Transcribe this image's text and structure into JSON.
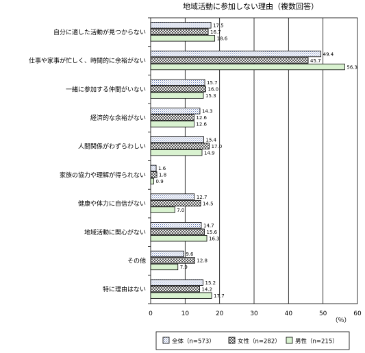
{
  "chart_data": {
    "type": "bar",
    "orientation": "horizontal",
    "title": "地域活動に参加しない理由（複数回答）",
    "unit_label": "（％）",
    "xlim": [
      0,
      60
    ],
    "xticks": [
      0,
      10,
      20,
      30,
      40,
      50,
      60
    ],
    "grid": true,
    "legend_position": "bottom",
    "categories": [
      "自分に適した活動が見つからない",
      "仕事や家事が忙しく、時間的に余裕がない",
      "一緒に参加する仲間がいない",
      "経済的な余裕がない",
      "人間関係がわずらわしい",
      "家族の協力や理解が得られない",
      "健康や体力に自信がない",
      "地域活動に関心がない",
      "その他",
      "特に理由はない"
    ],
    "series": [
      {
        "name": "全体（n=573）",
        "pattern": "dots",
        "values": [
          17.5,
          49.4,
          15.7,
          14.3,
          15.4,
          1.6,
          12.7,
          14.7,
          9.6,
          15.2
        ]
      },
      {
        "name": "女性（n=282）",
        "pattern": "hatch",
        "values": [
          16.7,
          45.7,
          16.0,
          12.6,
          17.0,
          1.8,
          14.5,
          15.6,
          12.8,
          14.2
        ]
      },
      {
        "name": "男性（n=215）",
        "pattern": "green",
        "values": [
          18.6,
          56.3,
          15.3,
          12.6,
          14.9,
          0.9,
          7.0,
          16.3,
          7.9,
          17.7
        ]
      }
    ],
    "value_labels": [
      [
        "17.5",
        "49.4",
        "15.7",
        "14.3",
        "15.4",
        "1.6",
        "12.7",
        "14.7",
        "9.6",
        "15.2"
      ],
      [
        "16.7",
        "45.7",
        "16.0",
        "12.6",
        "17.0",
        "1.8",
        "14.5",
        "15.6",
        "12.8",
        "14.2"
      ],
      [
        "18.6",
        "56.3",
        "15.3",
        "12.6",
        "14.9",
        "0.9",
        "7.0",
        "16.3",
        "7.9",
        "17.7"
      ]
    ]
  },
  "colors": {
    "dots_fill": "#ffffff",
    "dots_dot": "#6a7fb8",
    "hatch_fill": "#ffffff",
    "hatch_line": "#000000",
    "green_fill": "#d9f2d0",
    "grid": "#000000",
    "bar_stroke": "#000000"
  }
}
